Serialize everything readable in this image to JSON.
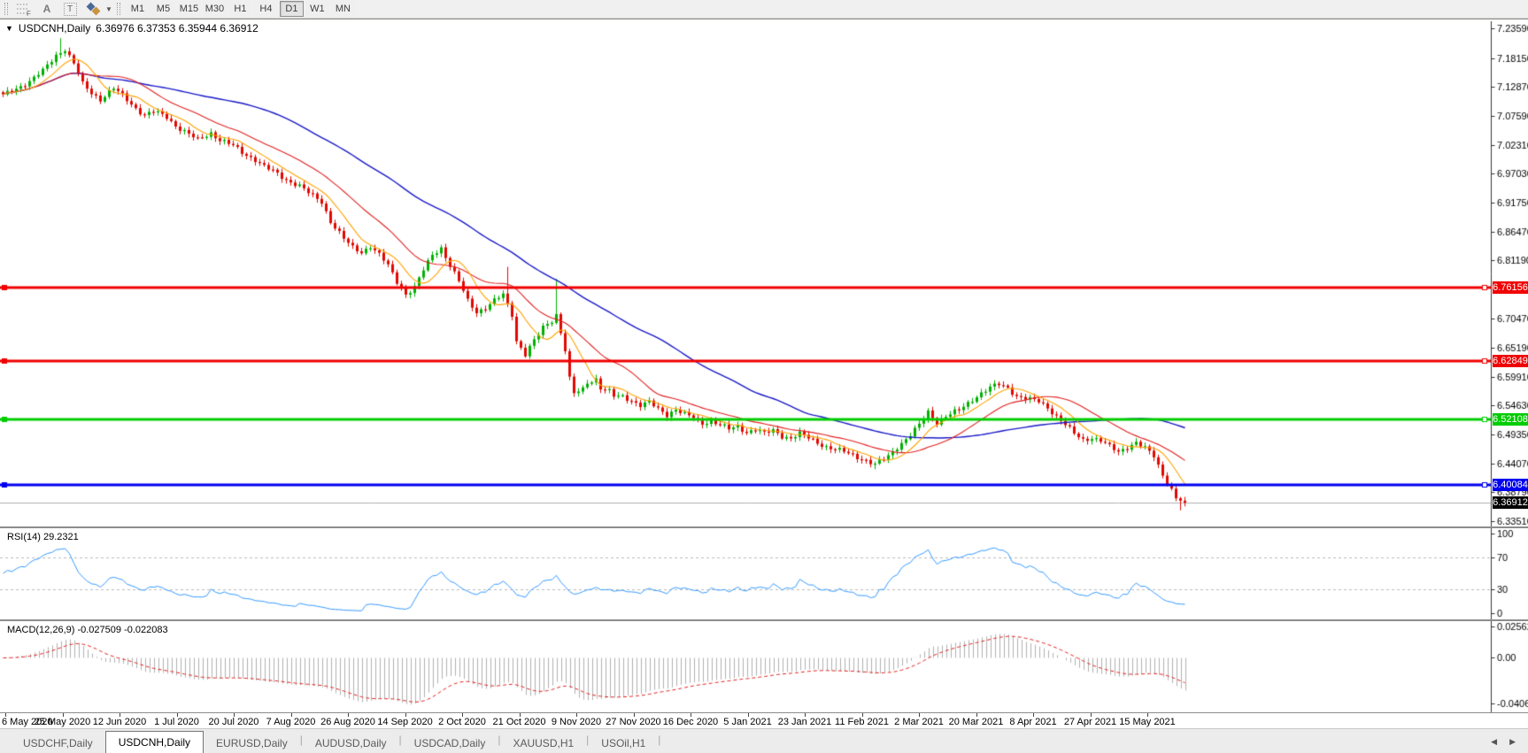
{
  "toolbar": {
    "draw_tools": [
      {
        "name": "fibonacci-tool",
        "glyph": "F"
      },
      {
        "name": "text-label-tool",
        "glyph": "A"
      },
      {
        "name": "text-box-tool",
        "glyph": "T"
      },
      {
        "name": "arrows-tool",
        "glyph": ""
      }
    ],
    "timeframes": [
      {
        "label": "M1"
      },
      {
        "label": "M5"
      },
      {
        "label": "M15"
      },
      {
        "label": "M30"
      },
      {
        "label": "H1"
      },
      {
        "label": "H4"
      },
      {
        "label": "D1",
        "active": true
      },
      {
        "label": "W1"
      },
      {
        "label": "MN"
      }
    ]
  },
  "chart": {
    "title": "USDCNH,Daily",
    "ohlc": "6.36976 6.37353 6.35944 6.36912"
  },
  "chart_data": {
    "type": "candlestick",
    "symbol": "USDCNH",
    "timeframe": "Daily",
    "title": "USDCNH,Daily 6.36976 6.37353 6.35944 6.36912",
    "open": 6.36976,
    "high": 6.37353,
    "low": 6.35944,
    "close": 6.36912,
    "grid": false,
    "colors": {
      "up_candle": "#00b000",
      "down_candle": "#e00800",
      "ma_fast": "#ffa200",
      "ma_mid": "#e02020",
      "ma_slow": "#1818c8",
      "axis_text": "#000000",
      "bid_line": "#b0b0b0",
      "rsi_line": "#3399ff",
      "rsi_level": "#bbbbbb",
      "macd_hist": "#b0b0b0",
      "macd_signal": "#e02020"
    },
    "x_labels": [
      "6 May 2020",
      "25 May 2020",
      "12 Jun 2020",
      "1 Jul 2020",
      "20 Jul 2020",
      "7 Aug 2020",
      "26 Aug 2020",
      "14 Sep 2020",
      "2 Oct 2020",
      "21 Oct 2020",
      "9 Nov 2020",
      "27 Nov 2020",
      "16 Dec 2020",
      "5 Jan 2021",
      "23 Jan 2021",
      "11 Feb 2021",
      "2 Mar 2021",
      "20 Mar 2021",
      "8 Apr 2021",
      "27 Apr 2021",
      "15 May 2021"
    ],
    "y_ticks": [
      "7.23590",
      "7.18150",
      "7.12870",
      "7.07590",
      "7.02310",
      "6.97030",
      "6.91750",
      "6.86470",
      "6.81190",
      "6.70470",
      "6.65190",
      "6.59910",
      "6.54630",
      "6.49350",
      "6.44070",
      "6.38790",
      "6.33510"
    ],
    "price_axis": {
      "top": 7.24884,
      "bottom": 6.3254,
      "decimals": 5
    },
    "num_candles": 268,
    "close_anchors": [
      [
        0,
        7.113
      ],
      [
        3,
        7.126
      ],
      [
        6,
        7.139
      ],
      [
        9,
        7.158
      ],
      [
        12,
        7.187
      ],
      [
        14,
        7.198
      ],
      [
        16,
        7.171
      ],
      [
        18,
        7.134
      ],
      [
        20,
        7.118
      ],
      [
        22,
        7.106
      ],
      [
        25,
        7.126
      ],
      [
        27,
        7.113
      ],
      [
        30,
        7.09
      ],
      [
        32,
        7.077
      ],
      [
        34,
        7.084
      ],
      [
        37,
        7.074
      ],
      [
        39,
        7.058
      ],
      [
        42,
        7.042
      ],
      [
        44,
        7.032
      ],
      [
        47,
        7.045
      ],
      [
        49,
        7.032
      ],
      [
        52,
        7.021
      ],
      [
        54,
        7.009
      ],
      [
        57,
        6.996
      ],
      [
        59,
        6.983
      ],
      [
        62,
        6.97
      ],
      [
        64,
        6.959
      ],
      [
        67,
        6.948
      ],
      [
        69,
        6.935
      ],
      [
        72,
        6.919
      ],
      [
        74,
        6.883
      ],
      [
        77,
        6.851
      ],
      [
        79,
        6.835
      ],
      [
        81,
        6.827
      ],
      [
        83,
        6.838
      ],
      [
        85,
        6.822
      ],
      [
        87,
        6.802
      ],
      [
        89,
        6.773
      ],
      [
        91,
        6.75
      ],
      [
        93,
        6.762
      ],
      [
        95,
        6.794
      ],
      [
        97,
        6.822
      ],
      [
        99,
        6.835
      ],
      [
        101,
        6.802
      ],
      [
        103,
        6.773
      ],
      [
        105,
        6.738
      ],
      [
        107,
        6.718
      ],
      [
        109,
        6.725
      ],
      [
        111,
        6.738
      ],
      [
        113,
        6.749
      ],
      [
        115,
        6.713
      ],
      [
        116,
        6.665
      ],
      [
        118,
        6.64
      ],
      [
        119,
        6.653
      ],
      [
        121,
        6.676
      ],
      [
        122,
        6.689
      ],
      [
        124,
        6.702
      ],
      [
        125,
        6.713
      ],
      [
        127,
        6.648
      ],
      [
        128,
        6.595
      ],
      [
        129,
        6.568
      ],
      [
        131,
        6.576
      ],
      [
        132,
        6.589
      ],
      [
        134,
        6.595
      ],
      [
        135,
        6.579
      ],
      [
        137,
        6.572
      ],
      [
        138,
        6.563
      ],
      [
        140,
        6.563
      ],
      [
        142,
        6.556
      ],
      [
        144,
        6.547
      ],
      [
        146,
        6.552
      ],
      [
        148,
        6.54
      ],
      [
        150,
        6.53
      ],
      [
        152,
        6.54
      ],
      [
        154,
        6.53
      ],
      [
        156,
        6.524
      ],
      [
        158,
        6.514
      ],
      [
        160,
        6.519
      ],
      [
        162,
        6.511
      ],
      [
        164,
        6.503
      ],
      [
        166,
        6.508
      ],
      [
        168,
        6.498
      ],
      [
        170,
        6.503
      ],
      [
        172,
        6.495
      ],
      [
        174,
        6.501
      ],
      [
        176,
        6.491
      ],
      [
        178,
        6.487
      ],
      [
        180,
        6.495
      ],
      [
        182,
        6.487
      ],
      [
        184,
        6.479
      ],
      [
        186,
        6.471
      ],
      [
        188,
        6.466
      ],
      [
        190,
        6.462
      ],
      [
        192,
        6.456
      ],
      [
        195,
        6.446
      ],
      [
        197,
        6.438
      ],
      [
        200,
        6.454
      ],
      [
        202,
        6.471
      ],
      [
        205,
        6.492
      ],
      [
        207,
        6.511
      ],
      [
        209,
        6.535
      ],
      [
        211,
        6.516
      ],
      [
        213,
        6.527
      ],
      [
        216,
        6.538
      ],
      [
        218,
        6.551
      ],
      [
        220,
        6.564
      ],
      [
        223,
        6.579
      ],
      [
        225,
        6.585
      ],
      [
        227,
        6.579
      ],
      [
        229,
        6.564
      ],
      [
        231,
        6.559
      ],
      [
        234,
        6.554
      ],
      [
        236,
        6.543
      ],
      [
        238,
        6.527
      ],
      [
        240,
        6.511
      ],
      [
        242,
        6.495
      ],
      [
        244,
        6.484
      ],
      [
        246,
        6.488
      ],
      [
        248,
        6.482
      ],
      [
        250,
        6.471
      ],
      [
        252,
        6.462
      ],
      [
        254,
        6.471
      ],
      [
        256,
        6.479
      ],
      [
        258,
        6.468
      ],
      [
        260,
        6.454
      ],
      [
        262,
        6.42
      ],
      [
        264,
        6.393
      ],
      [
        265,
        6.377
      ],
      [
        267,
        6.36912
      ]
    ],
    "wick_overrides": [
      {
        "i": 13,
        "high": 7.218
      },
      {
        "i": 114,
        "high": 6.8
      },
      {
        "i": 125,
        "high": 6.778
      },
      {
        "i": 197,
        "low": 6.43
      },
      {
        "i": 266,
        "low": 6.355
      }
    ],
    "moving_averages": [
      {
        "period": 8,
        "color": "#ffa200",
        "width": 1.1
      },
      {
        "period": 21,
        "color": "#e02020",
        "width": 1.1
      },
      {
        "period": 55,
        "color": "#1818c8",
        "width": 1.4
      }
    ],
    "hlines": [
      {
        "price": 6.76156,
        "label": "6.76156",
        "color": "#f00000",
        "width": 3
      },
      {
        "price": 6.62849,
        "label": "6.62849",
        "color": "#f00000",
        "width": 3
      },
      {
        "price": 6.52108,
        "label": "6.52108",
        "color": "#00cc00",
        "width": 3
      },
      {
        "price": 6.40084,
        "label": "6.40084",
        "color": "#0000f0",
        "width": 3
      }
    ],
    "current_price": {
      "value": 6.36912,
      "label": "6.36912",
      "tag_bg": "#000000"
    },
    "rsi": {
      "label": "RSI(14) 29.2321",
      "period": 14,
      "value": 29.2321,
      "scale_ticks": [
        "100",
        "70",
        "30",
        "0"
      ],
      "dashed_levels": [
        70,
        30
      ]
    },
    "macd": {
      "label": "MACD(12,26,9) -0.027509 -0.022083",
      "fast": 12,
      "slow": 26,
      "signal": 9,
      "macd_value": -0.027509,
      "signal_value": -0.022083,
      "scale_ticks": [
        "0.025623",
        "0.00",
        "-0.040687"
      ],
      "scale_max": 0.025623,
      "scale_min": -0.040687
    }
  },
  "tabs": {
    "items": [
      {
        "label": "USDCHF,Daily"
      },
      {
        "label": "USDCNH,Daily",
        "active": true
      },
      {
        "label": "EURUSD,Daily"
      },
      {
        "label": "AUDUSD,Daily"
      },
      {
        "label": "USDCAD,Daily"
      },
      {
        "label": "XAUUSD,H1"
      },
      {
        "label": "USOil,H1"
      }
    ],
    "scroll_left": "◀",
    "scroll_right": "▶"
  }
}
